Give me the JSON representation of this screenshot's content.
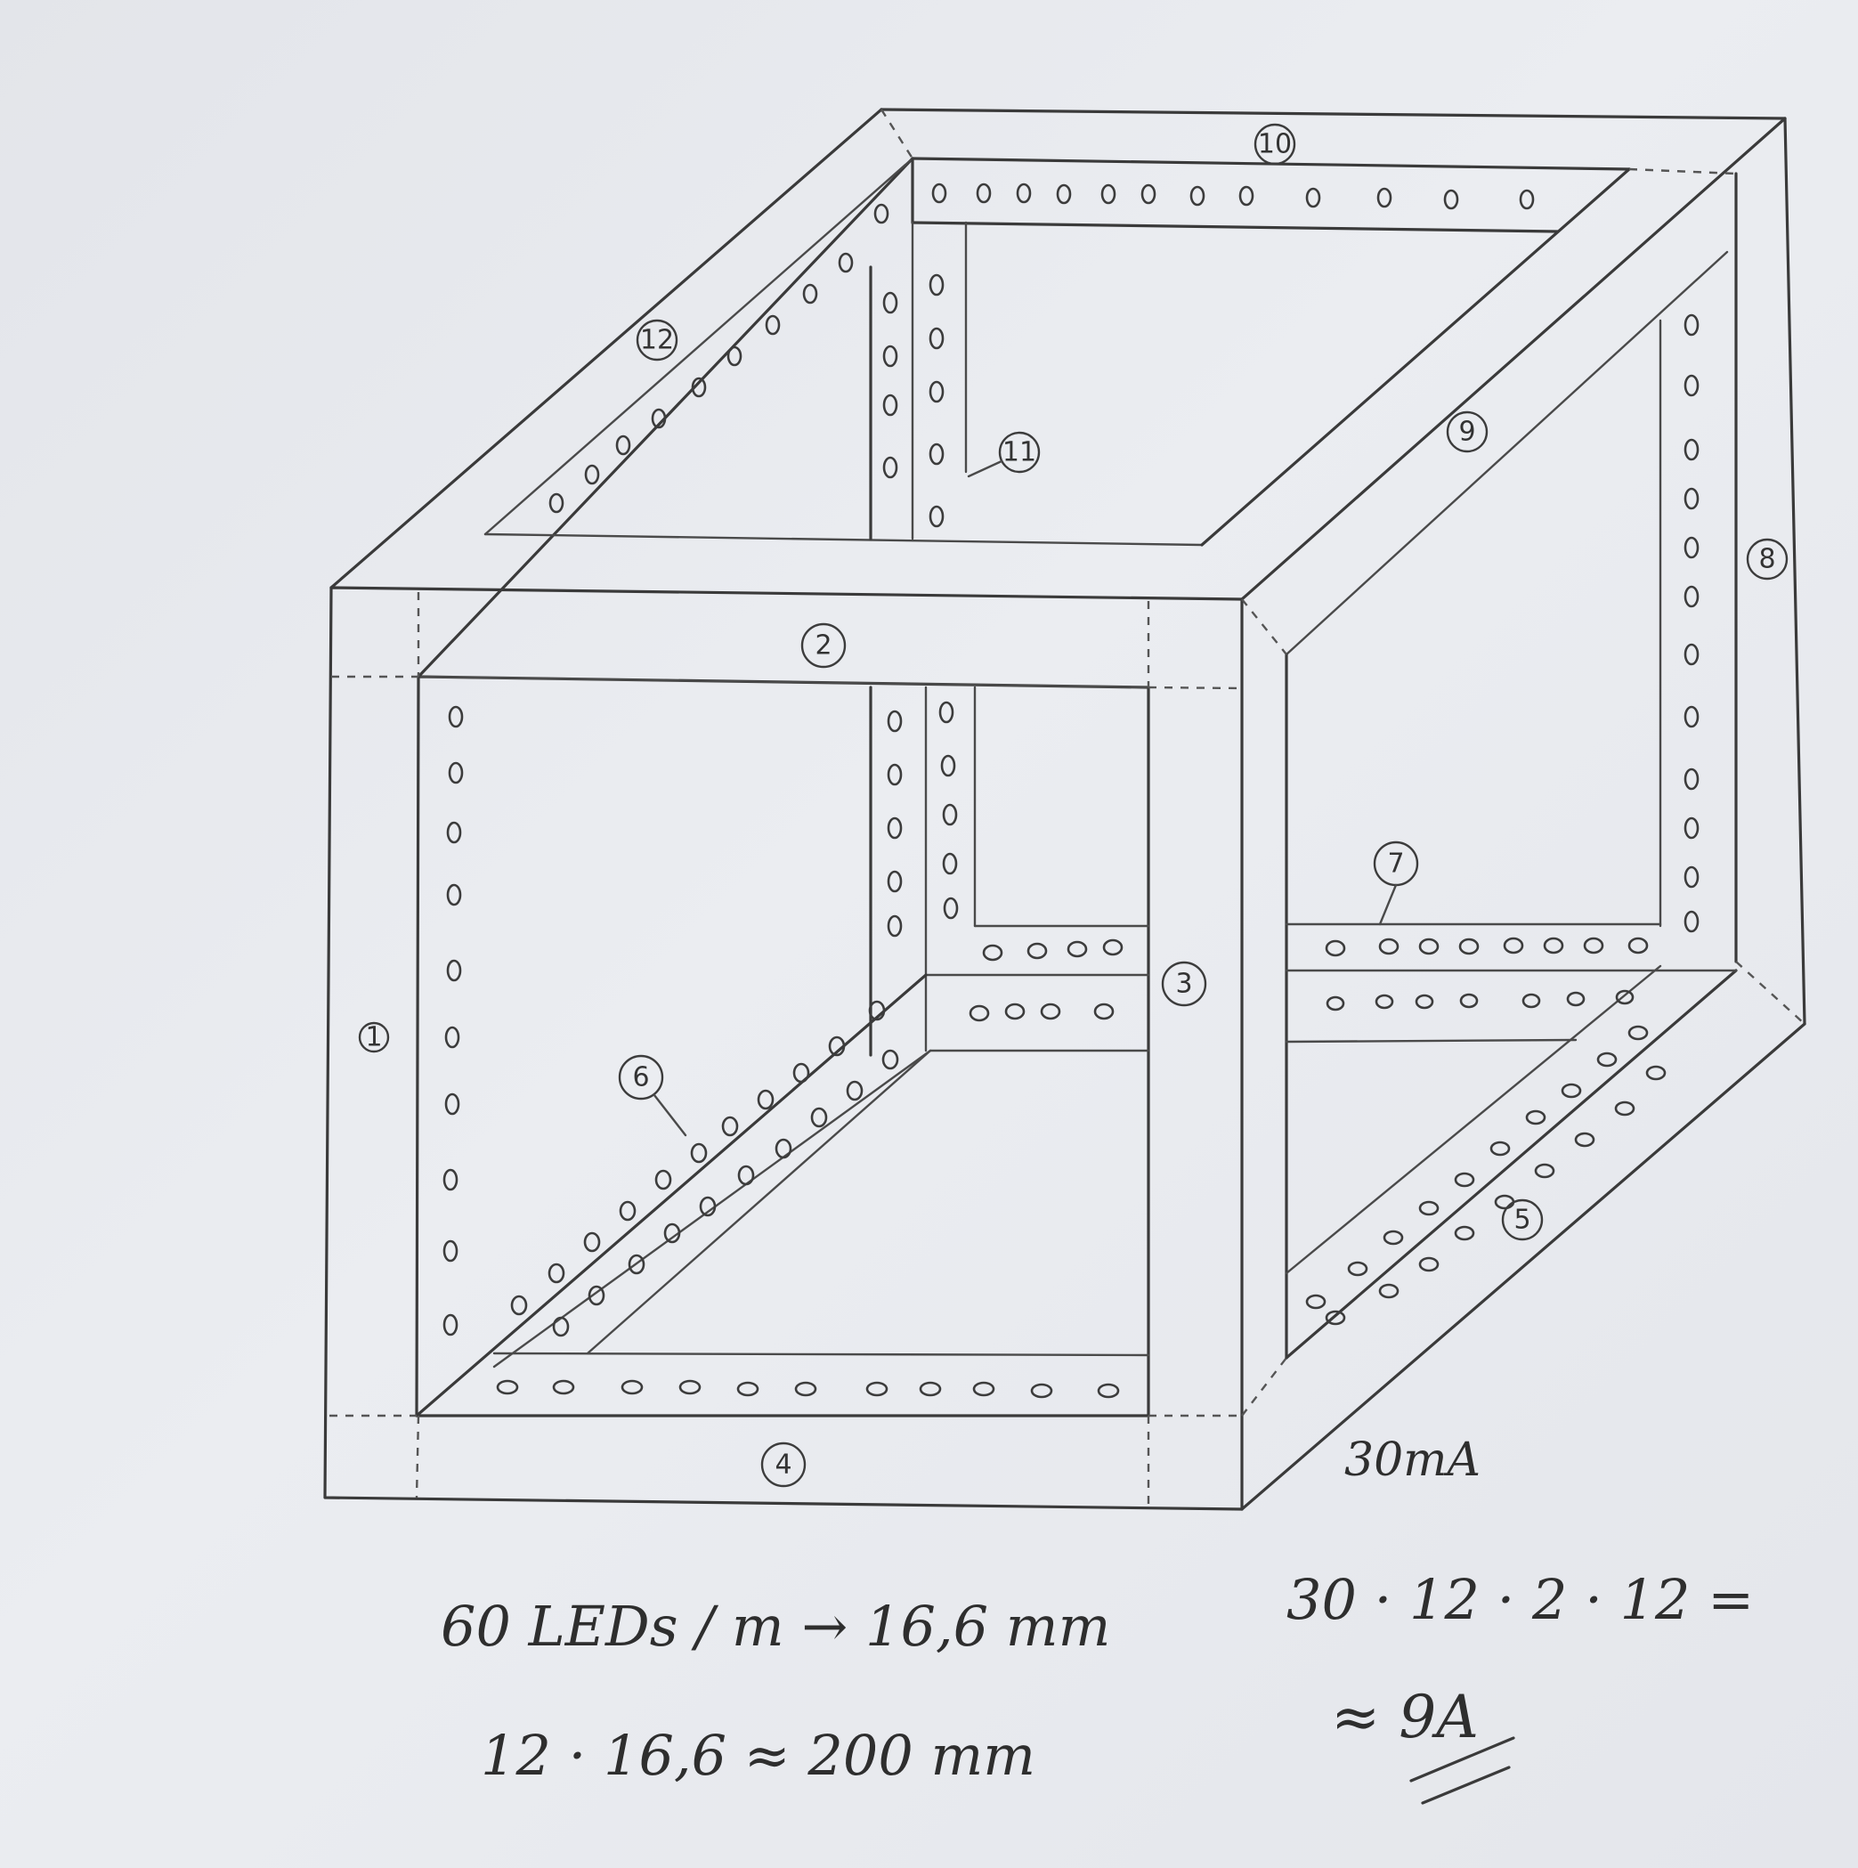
{
  "diagram": {
    "edge_labels": [
      "1",
      "2",
      "3",
      "4",
      "5",
      "6",
      "7",
      "8",
      "9",
      "10",
      "11",
      "12"
    ]
  },
  "notes": {
    "current_per_led": "30mA",
    "density": "60 LEDs / m → 16,6 mm",
    "length": "12 · 16,6 ≈ 200 mm",
    "calc": "30 · 12 · 2 · 12 =",
    "result": "≈ 9A"
  }
}
